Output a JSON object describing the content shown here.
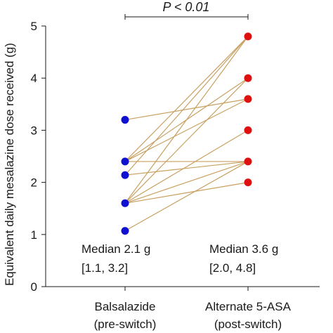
{
  "chart_data": {
    "type": "scatter",
    "ylabel": "Equivalent daily mesalazine dose received (g)",
    "ylim": [
      0,
      5
    ],
    "yticks": [
      "0",
      "1",
      "2",
      "3",
      "4",
      "5"
    ],
    "categories": [
      {
        "line1": "Balsalazide",
        "line2": "(pre-switch)"
      },
      {
        "line1": "Alternate 5-ASA",
        "line2": "(post-switch)"
      }
    ],
    "significance": "P < 0.01",
    "median_labels": [
      {
        "line1": "Median 2.1 g",
        "line2": "[1.1, 3.2]"
      },
      {
        "line1": "Median 3.6 g",
        "line2": "[2.0, 4.8]"
      }
    ],
    "colors": {
      "pre": "#1010d0",
      "post": "#e01010",
      "line": "#c8a060",
      "axis": "#1a1a1a"
    },
    "pairs": [
      [
        3.2,
        3.6
      ],
      [
        2.4,
        4.8
      ],
      [
        2.4,
        4.0
      ],
      [
        2.4,
        2.4
      ],
      [
        2.4,
        3.6
      ],
      [
        2.14,
        2.4
      ],
      [
        2.14,
        4.8
      ],
      [
        1.6,
        4.8
      ],
      [
        1.6,
        4.0
      ],
      [
        1.6,
        3.0
      ],
      [
        1.6,
        2.4
      ],
      [
        1.6,
        2.0
      ],
      [
        1.07,
        2.4
      ]
    ]
  }
}
